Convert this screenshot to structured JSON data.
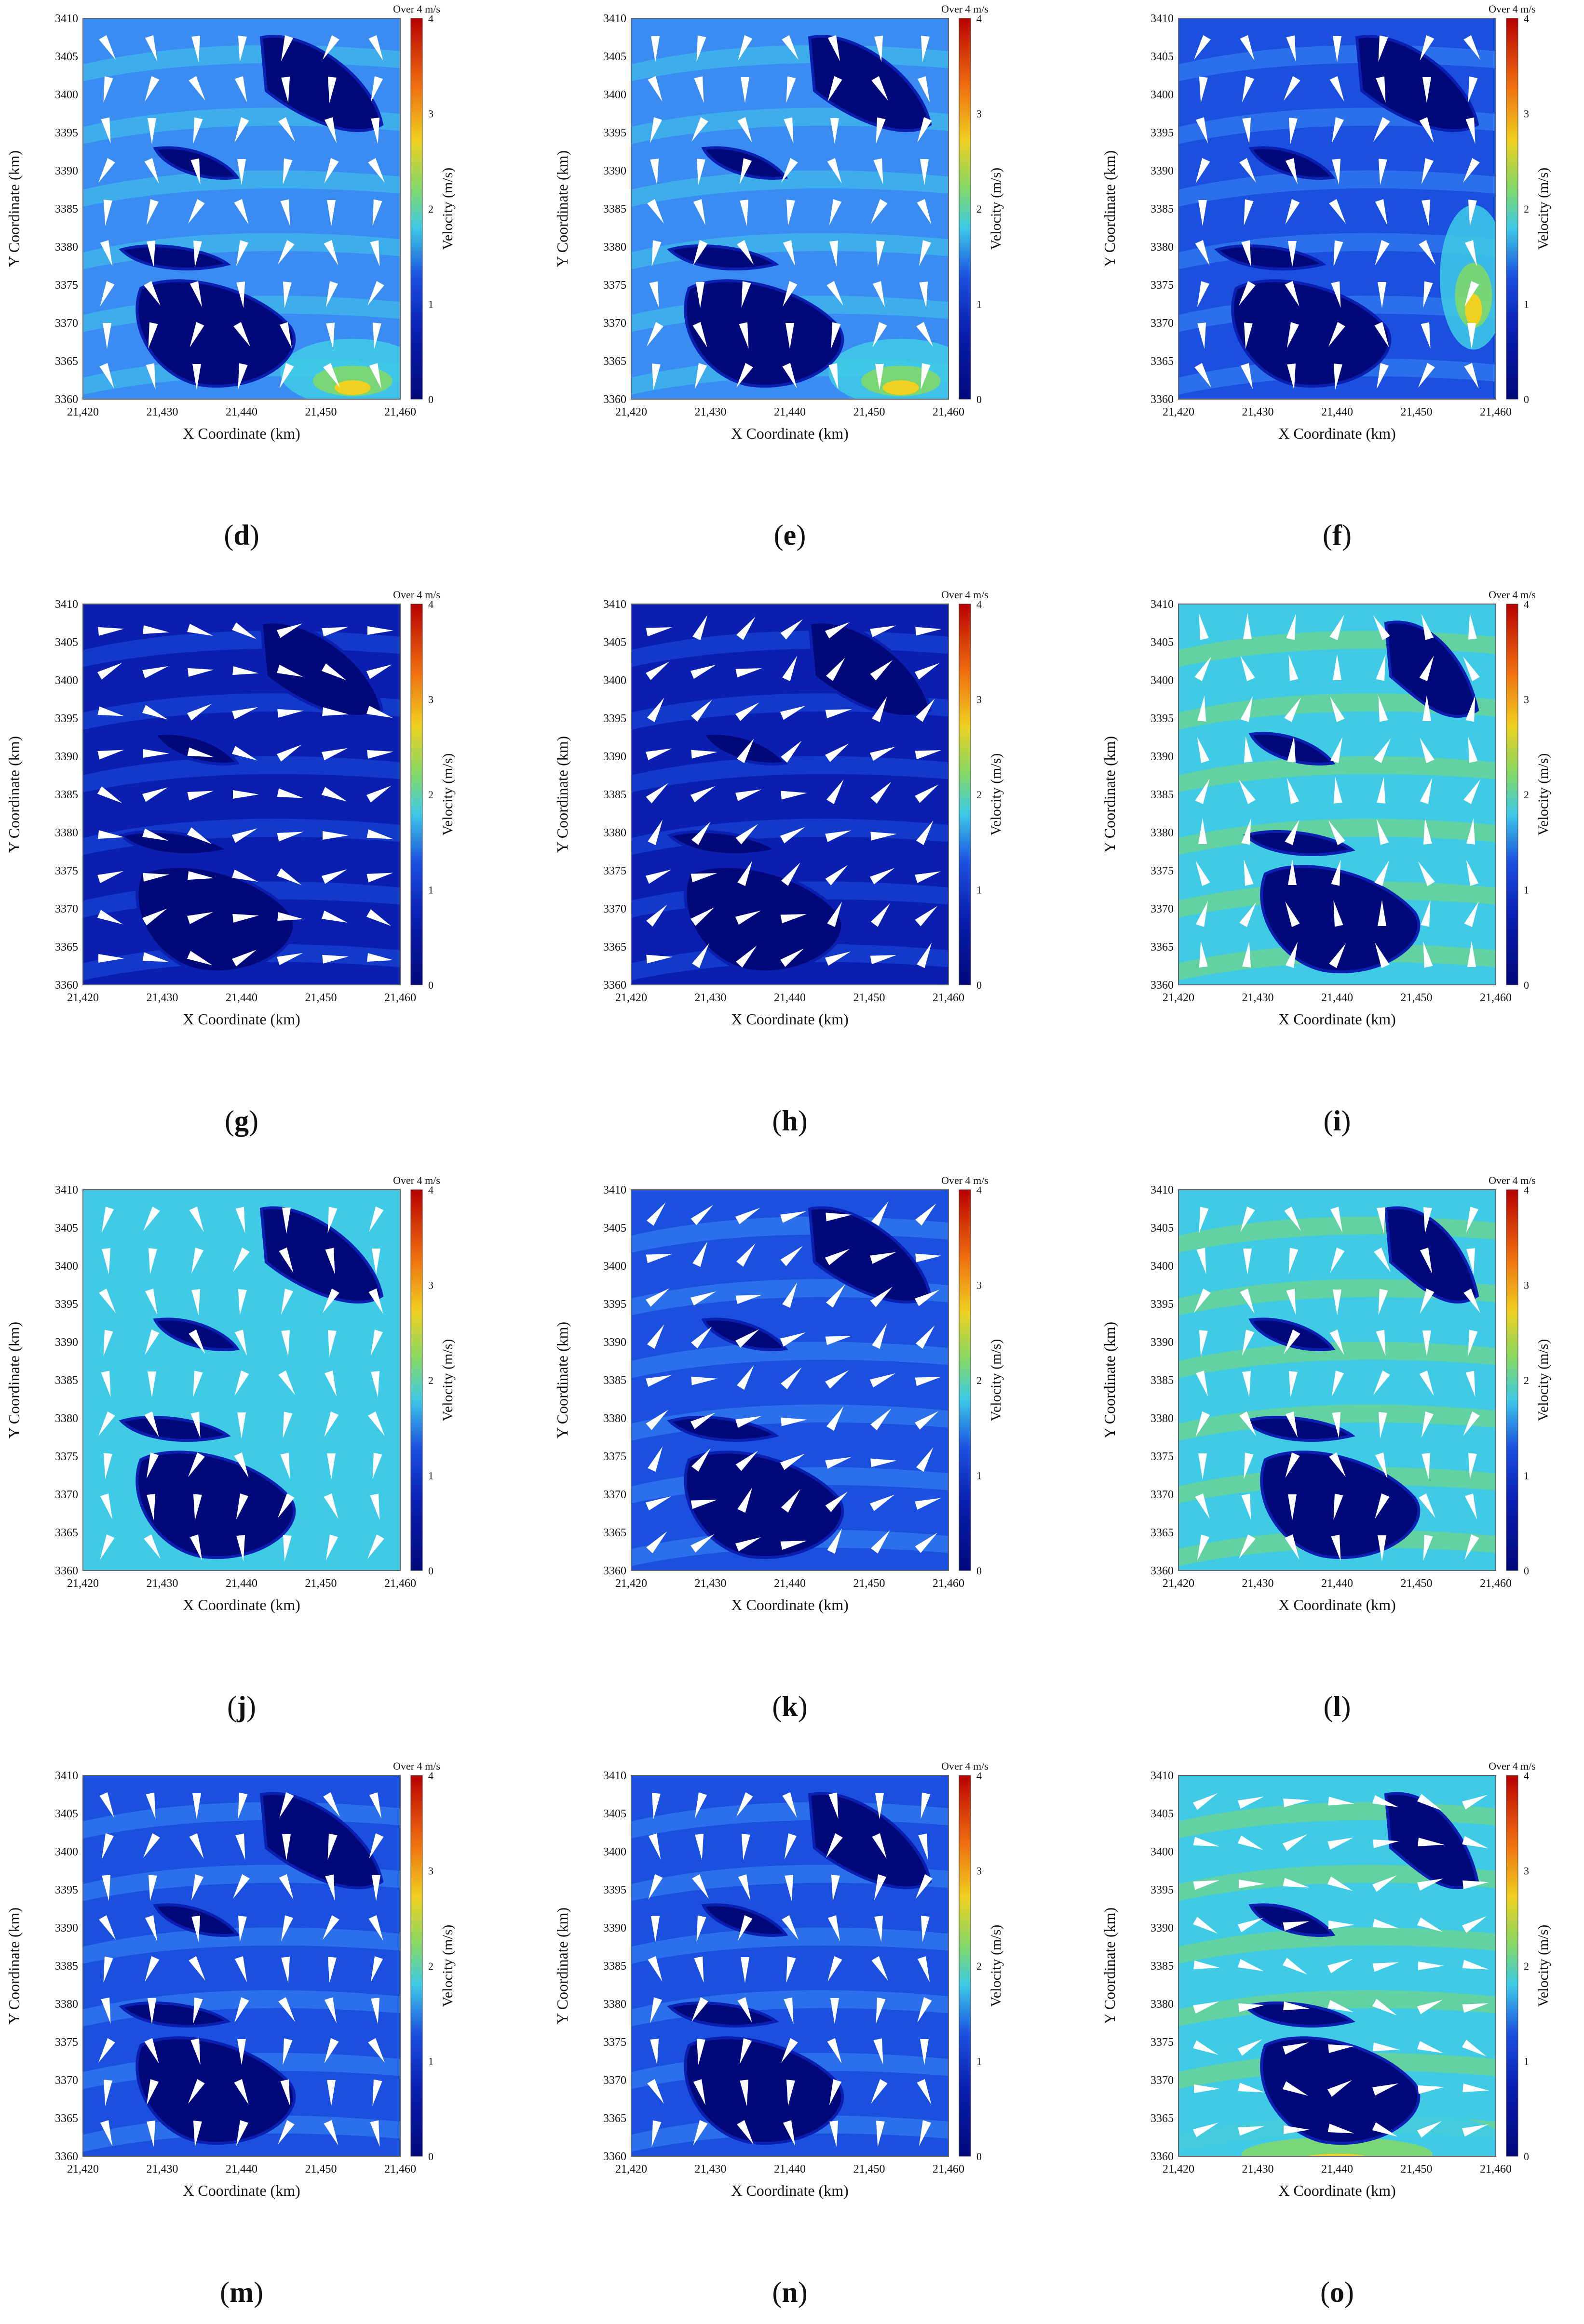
{
  "figure": {
    "common": {
      "xlabel": "X Coordinate (km)",
      "ylabel": "Y Coordinate (km)",
      "colorbar_label": "Velocity (m/s)",
      "colorbar_over": "Over 4 m/s",
      "xlim": [
        21420,
        21460
      ],
      "ylim": [
        3360,
        3410
      ],
      "x_ticks": [
        "21,420",
        "21,430",
        "21,440",
        "21,450",
        "21,460"
      ],
      "y_ticks": [
        "3410",
        "3405",
        "3400",
        "3395",
        "3390",
        "3385",
        "3380",
        "3375",
        "3370",
        "3365",
        "3360"
      ],
      "colorbar_ticks": [
        "4",
        "3",
        "2",
        "1",
        "0"
      ],
      "colorbar_range": [
        0,
        4
      ],
      "colors": {
        "deep": "#00087a",
        "dark": "#0a1fb0",
        "mid": "#1a4fe0",
        "light": "#3a8cf2",
        "cyan": "#3fcbe6",
        "green": "#7fd86a",
        "yellow": "#f0d020",
        "orange": "#f07010",
        "red": "#b80000",
        "arrow": "#ffffff"
      }
    },
    "chart_data": [
      {
        "type": "heatmap",
        "panel": "d",
        "caption_letter": "d",
        "base_level": 1.3,
        "hotspot": "bottom-right",
        "dominant_direction": "south",
        "islands": "standard"
      },
      {
        "type": "heatmap",
        "panel": "e",
        "caption_letter": "e",
        "base_level": 1.2,
        "hotspot": "bottom-right",
        "dominant_direction": "south",
        "islands": "standard"
      },
      {
        "type": "heatmap",
        "panel": "f",
        "caption_letter": "f",
        "base_level": 1.1,
        "hotspot": "right",
        "dominant_direction": "south",
        "islands": "standard"
      },
      {
        "type": "heatmap",
        "panel": "g",
        "caption_letter": "g",
        "base_level": 0.7,
        "hotspot": "none",
        "dominant_direction": "east",
        "islands": "standard"
      },
      {
        "type": "heatmap",
        "panel": "h",
        "caption_letter": "h",
        "base_level": 0.6,
        "hotspot": "none",
        "dominant_direction": "north-east",
        "islands": "standard"
      },
      {
        "type": "heatmap",
        "panel": "i",
        "caption_letter": "i",
        "base_level": 1.6,
        "hotspot": "none",
        "dominant_direction": "north",
        "islands": "shifted"
      },
      {
        "type": "heatmap",
        "panel": "j",
        "caption_letter": "j",
        "base_level": 1.5,
        "hotspot": "none",
        "dominant_direction": "south",
        "islands": "standard"
      },
      {
        "type": "heatmap",
        "panel": "k",
        "caption_letter": "k",
        "base_level": 1.0,
        "hotspot": "none",
        "dominant_direction": "north-east",
        "islands": "standard"
      },
      {
        "type": "heatmap",
        "panel": "l",
        "caption_letter": "l",
        "base_level": 1.6,
        "hotspot": "none",
        "dominant_direction": "south",
        "islands": "shifted"
      },
      {
        "type": "heatmap",
        "panel": "m",
        "caption_letter": "m",
        "base_level": 1.1,
        "hotspot": "none",
        "dominant_direction": "south",
        "islands": "standard"
      },
      {
        "type": "heatmap",
        "panel": "n",
        "caption_letter": "n",
        "base_level": 1.0,
        "hotspot": "none",
        "dominant_direction": "south",
        "islands": "standard"
      },
      {
        "type": "heatmap",
        "panel": "o",
        "caption_letter": "o",
        "base_level": 1.7,
        "hotspot": "bottom",
        "dominant_direction": "east",
        "islands": "shifted"
      }
    ]
  }
}
